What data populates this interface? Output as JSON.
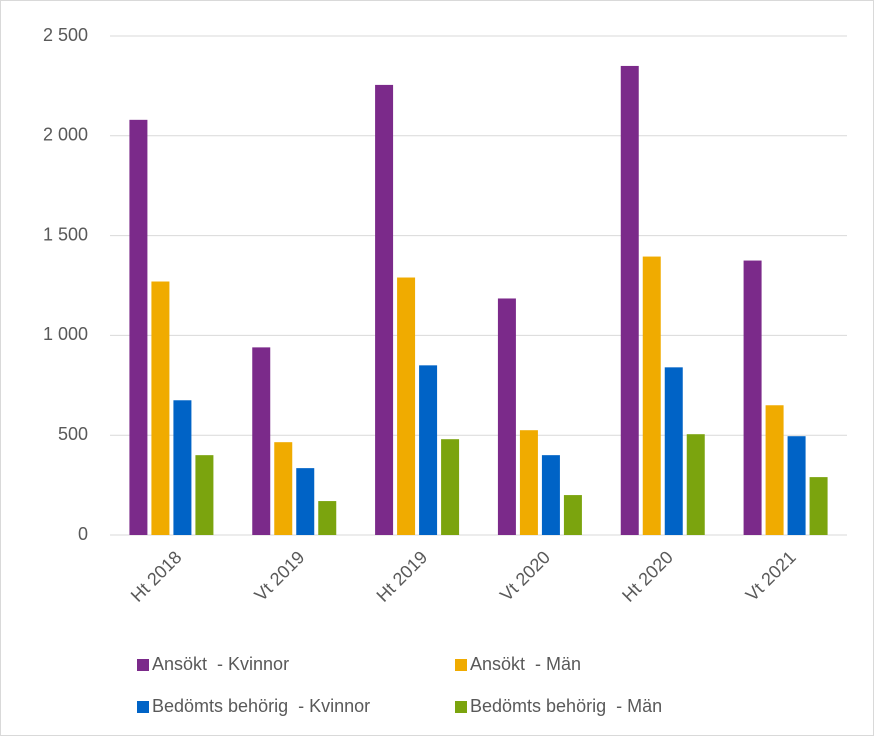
{
  "chart_data": {
    "type": "bar",
    "categories": [
      "Ht 2018",
      "Vt 2019",
      "Ht 2019",
      "Vt 2020",
      "Ht 2020",
      "Vt 2021"
    ],
    "series": [
      {
        "name": "Ansökt  - Kvinnor",
        "color": "#7b2a8a",
        "values": [
          2080,
          940,
          2255,
          1185,
          2350,
          1375
        ]
      },
      {
        "name": "Ansökt  - Män",
        "color": "#f0ab00",
        "values": [
          1270,
          465,
          1290,
          525,
          1395,
          650
        ]
      },
      {
        "name": "Bedömts behörig  - Kvinnor",
        "color": "#0063c6",
        "values": [
          675,
          335,
          850,
          400,
          840,
          495
        ]
      },
      {
        "name": "Bedömts behörig  - Män",
        "color": "#7ba40e",
        "values": [
          400,
          170,
          480,
          200,
          505,
          290
        ]
      }
    ],
    "ylim": [
      0,
      2500
    ],
    "yticks": [
      0,
      500,
      {
        "value": 1000,
        "label": "1 000"
      },
      {
        "value": 1500,
        "label": "1 500"
      },
      {
        "value": 2000,
        "label": "2 000"
      },
      {
        "value": 2500,
        "label": "2 500"
      }
    ],
    "grid": true,
    "legend": "bottom"
  }
}
